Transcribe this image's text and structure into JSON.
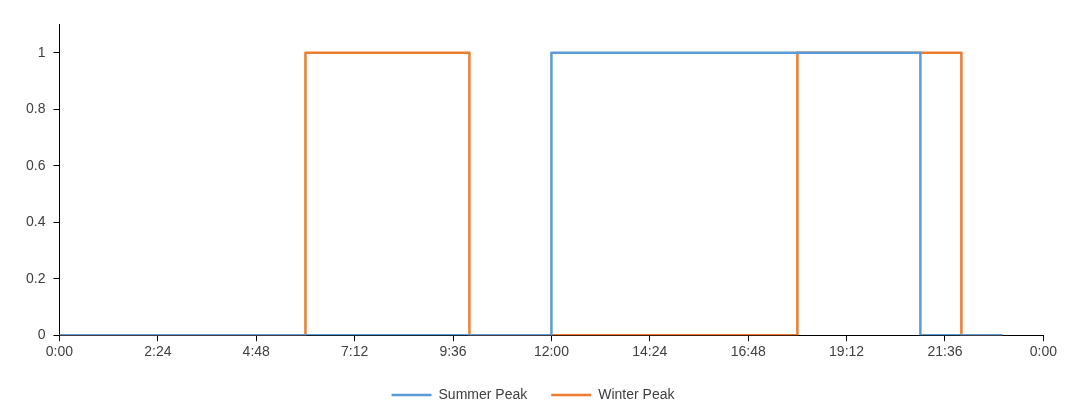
{
  "chart_data": {
    "type": "step",
    "xlim": [
      0,
      24
    ],
    "ylim": [
      0,
      1.1
    ],
    "xticks": [
      {
        "value": 0,
        "label": "0:00"
      },
      {
        "value": 2.4,
        "label": "2:24"
      },
      {
        "value": 4.8,
        "label": "4:48"
      },
      {
        "value": 7.2,
        "label": "7:12"
      },
      {
        "value": 9.6,
        "label": "9:36"
      },
      {
        "value": 12,
        "label": "12:00"
      },
      {
        "value": 14.4,
        "label": "14:24"
      },
      {
        "value": 16.8,
        "label": "16:48"
      },
      {
        "value": 19.2,
        "label": "19:12"
      },
      {
        "value": 21.6,
        "label": "21:36"
      },
      {
        "value": 24,
        "label": "0:00"
      }
    ],
    "yticks": [
      0,
      0.2,
      0.4,
      0.6,
      0.8,
      1
    ],
    "series": [
      {
        "name": "Summer Peak",
        "color": "#5b9bd5",
        "x": [
          0,
          12,
          21,
          23
        ],
        "values": [
          0,
          1,
          0,
          0
        ]
      },
      {
        "name": "Winter Peak",
        "color": "#ed7d31",
        "x": [
          0,
          6,
          10,
          18,
          22,
          23
        ],
        "values": [
          0,
          1,
          0,
          1,
          0,
          0
        ]
      }
    ],
    "grid": false,
    "legend": "bottom",
    "marker": "none",
    "line_style": "solid"
  }
}
